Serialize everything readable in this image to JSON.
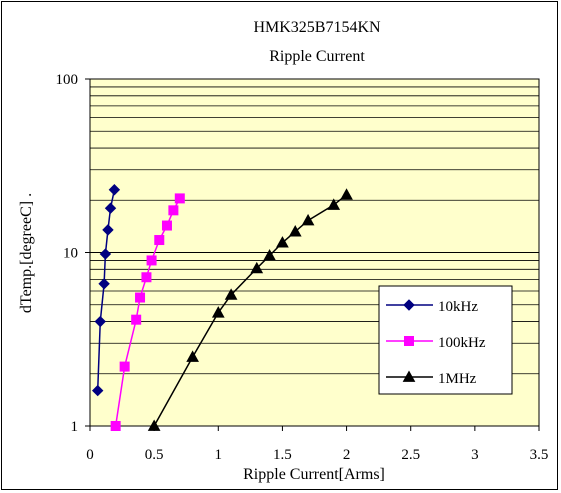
{
  "chart_data": {
    "type": "line",
    "title": "HMK325B7154KN",
    "subtitle": "Ripple Current",
    "xlabel": "Ripple Current[Arms]",
    "ylabel": "dTemp.[degreeC] .",
    "xlim": [
      0,
      3.5
    ],
    "ylim": [
      1,
      100
    ],
    "y_scale": "log",
    "x_ticks": [
      "0",
      "0.5",
      "1",
      "1.5",
      "2",
      "2.5",
      "3",
      "3.5"
    ],
    "y_ticks": [
      "1",
      "10",
      "100"
    ],
    "grid": true,
    "legend_position": "right",
    "plot_background": "#ffffcc",
    "series": [
      {
        "name": "10kHz",
        "color": "#000080",
        "marker": "diamond",
        "x": [
          0.06,
          0.08,
          0.11,
          0.12,
          0.14,
          0.16,
          0.19
        ],
        "y": [
          1.6,
          4.0,
          6.6,
          9.8,
          13.5,
          18.0,
          23.0
        ]
      },
      {
        "name": "100kHz",
        "color": "#ff00ff",
        "marker": "square",
        "x": [
          0.2,
          0.27,
          0.36,
          0.39,
          0.44,
          0.48,
          0.54,
          0.6,
          0.65,
          0.7
        ],
        "y": [
          1.0,
          2.2,
          4.1,
          5.5,
          7.2,
          9.0,
          11.8,
          14.3,
          17.5,
          20.5
        ]
      },
      {
        "name": "1MHz",
        "color": "#000000",
        "marker": "triangle",
        "x": [
          0.5,
          0.8,
          1.0,
          1.1,
          1.3,
          1.4,
          1.5,
          1.6,
          1.7,
          1.9,
          2.0
        ],
        "y": [
          1.0,
          2.5,
          4.5,
          5.7,
          8.1,
          9.6,
          11.4,
          13.2,
          15.3,
          18.8,
          21.5
        ]
      }
    ]
  }
}
